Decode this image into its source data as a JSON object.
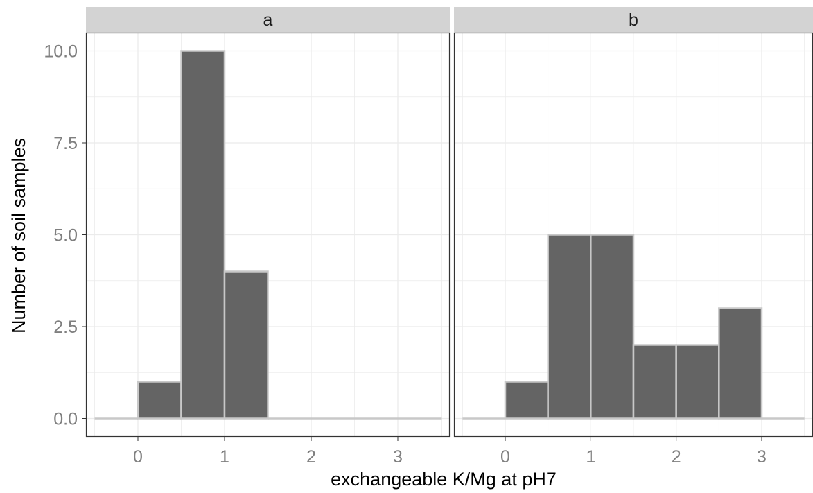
{
  "chart_data": {
    "type": "histogram",
    "xlabel": "exchangeable K/Mg at pH7",
    "ylabel": "Number of soil samples",
    "xlim": [
      -0.6,
      3.6
    ],
    "ylim": [
      -0.5,
      10.5
    ],
    "x_ticks": [
      0,
      1,
      2,
      3
    ],
    "x_tick_labels": [
      "0",
      "1",
      "2",
      "3"
    ],
    "y_ticks": [
      0,
      2.5,
      5,
      7.5,
      10
    ],
    "y_tick_labels": [
      "0.0",
      "2.5",
      "5.0",
      "7.5",
      "10.0"
    ],
    "binwidth": 0.5,
    "bins": [
      -0.5,
      0,
      0.5,
      1,
      1.5,
      2,
      2.5,
      3,
      3.5
    ],
    "grid": true,
    "colors": {
      "bar_fill": "#646464",
      "bar_stroke": "#c8c8c8",
      "strip_bg": "#d3d3d3",
      "grid": "#ebebeb"
    },
    "panels": [
      {
        "label": "a",
        "counts": [
          0,
          1,
          10,
          4,
          0,
          0,
          0,
          0
        ]
      },
      {
        "label": "b",
        "counts": [
          0,
          1,
          5,
          5,
          2,
          2,
          3,
          0
        ]
      }
    ]
  }
}
